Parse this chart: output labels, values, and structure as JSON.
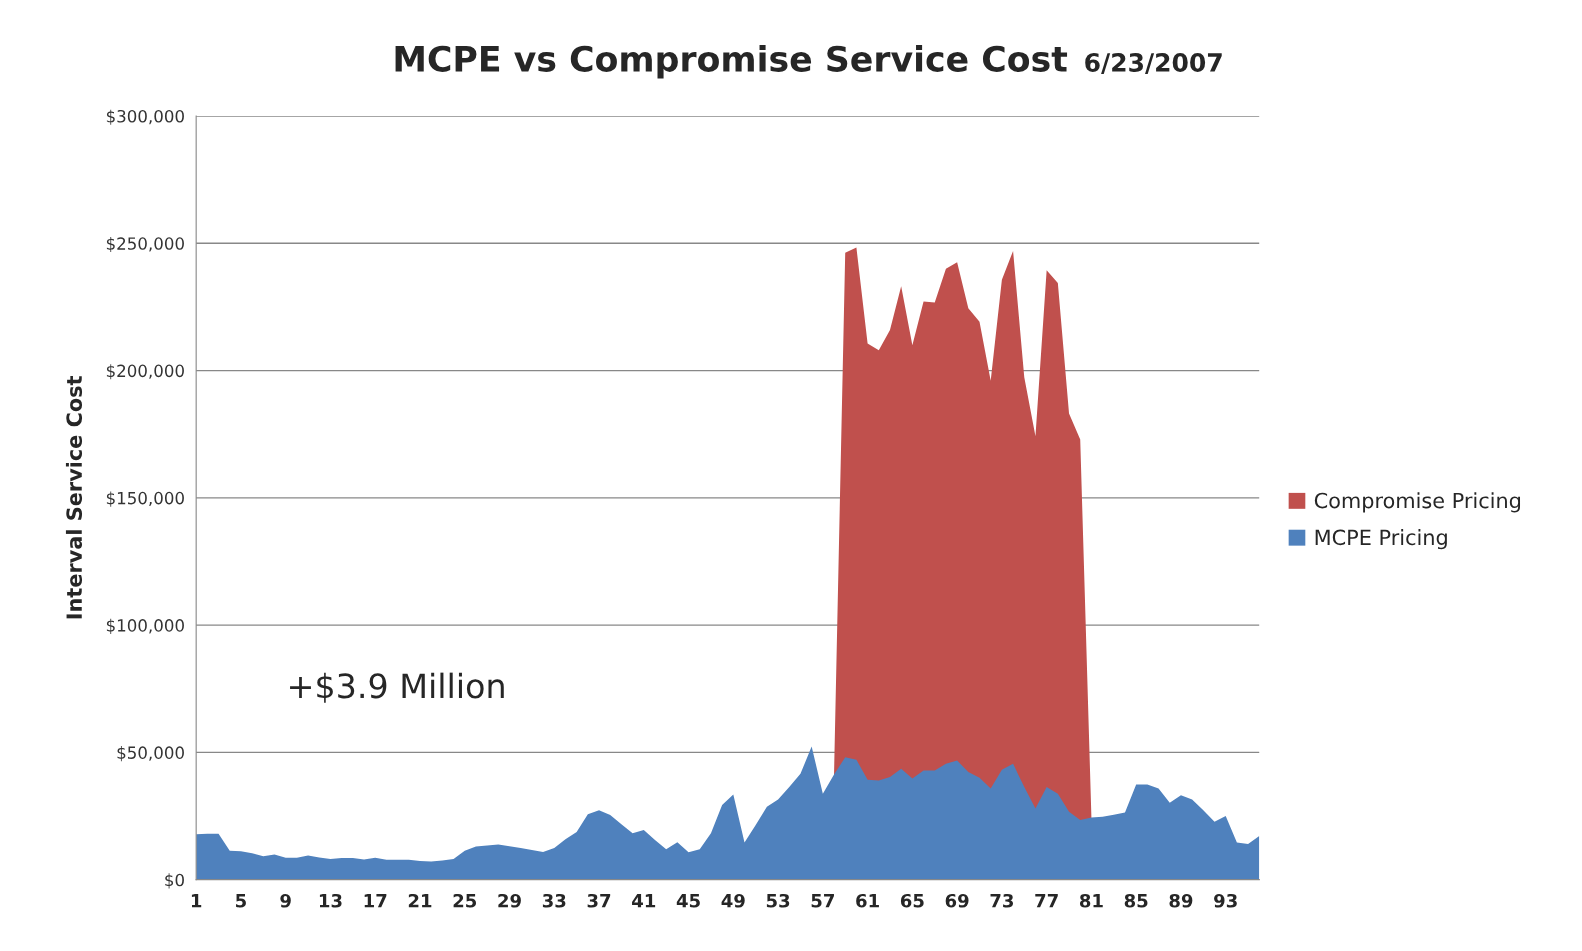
{
  "chart_data": {
    "type": "area",
    "title": "MCPE vs Compromise Service Cost",
    "subtitle": "6/23/2007",
    "ylabel": "Interval Service Cost",
    "categories": [
      "1",
      null,
      null,
      null,
      "5",
      null,
      null,
      null,
      "9",
      null,
      null,
      null,
      "13",
      null,
      null,
      null,
      "17",
      null,
      null,
      null,
      "21",
      null,
      null,
      null,
      "25",
      null,
      null,
      null,
      "29",
      null,
      null,
      null,
      "33",
      null,
      null,
      null,
      "37",
      null,
      null,
      null,
      "41",
      null,
      null,
      null,
      "45",
      null,
      null,
      null,
      "49",
      null,
      null,
      null,
      "53",
      null,
      null,
      null,
      "57",
      null,
      null,
      null,
      "61",
      null,
      null,
      null,
      "65",
      null,
      null,
      null,
      "69",
      null,
      null,
      null,
      "73",
      null,
      null,
      null,
      "77",
      null,
      null,
      null,
      "81",
      null,
      null,
      null,
      "85",
      null,
      null,
      null,
      "89",
      null,
      null,
      null,
      "93",
      null,
      null,
      null
    ],
    "series": [
      {
        "name": "Compromise Pricing",
        "color": "#c0504d",
        "values": [
          null,
          null,
          null,
          null,
          null,
          null,
          null,
          null,
          null,
          null,
          null,
          null,
          null,
          null,
          null,
          null,
          null,
          null,
          null,
          null,
          null,
          null,
          null,
          null,
          null,
          null,
          null,
          null,
          null,
          null,
          null,
          null,
          null,
          null,
          null,
          null,
          null,
          null,
          null,
          null,
          null,
          null,
          null,
          null,
          null,
          null,
          null,
          null,
          null,
          null,
          null,
          null,
          null,
          null,
          null,
          null,
          null,
          41300,
          246300,
          248300,
          210600,
          208000,
          215900,
          233100,
          209900,
          227100,
          226700,
          240000,
          242600,
          224500,
          219200,
          196000,
          235700,
          247000,
          197400,
          174200,
          239400,
          234400,
          183100,
          172900,
          24400,
          null,
          null,
          null,
          null,
          null,
          null,
          null,
          null,
          null,
          null,
          null,
          null,
          null,
          null,
          null
        ]
      },
      {
        "name": "MCPE Pricing",
        "color": "#4f81bd",
        "values": [
          17800,
          18000,
          18000,
          11400,
          11200,
          10400,
          9200,
          9900,
          8600,
          8600,
          9500,
          8700,
          8100,
          8500,
          8500,
          7900,
          8600,
          7800,
          7800,
          7800,
          7300,
          7100,
          7500,
          8100,
          11400,
          13000,
          13400,
          13800,
          13100,
          12400,
          11700,
          10900,
          12400,
          15900,
          18700,
          25700,
          27300,
          25400,
          21800,
          18200,
          19500,
          15600,
          12000,
          14700,
          10800,
          12000,
          18200,
          29300,
          33500,
          14600,
          21500,
          28600,
          31500,
          36400,
          41600,
          52300,
          33800,
          41300,
          48100,
          47100,
          39300,
          39000,
          40300,
          43600,
          39700,
          42900,
          42900,
          45500,
          46800,
          42300,
          40000,
          35800,
          43200,
          45500,
          36400,
          28000,
          36400,
          33800,
          26700,
          23400,
          24400,
          24700,
          25500,
          26400,
          37400,
          37400,
          35800,
          30200,
          33200,
          31500,
          27300,
          22800,
          25000,
          14600,
          14000,
          17200
        ]
      }
    ],
    "ylim": [
      0,
      300000
    ],
    "yticks": [
      {
        "value": 0,
        "label": "$0"
      },
      {
        "value": 50000,
        "label": "$50,000"
      },
      {
        "value": 100000,
        "label": "$100,000"
      },
      {
        "value": 150000,
        "label": "$150,000"
      },
      {
        "value": 200000,
        "label": "$200,000"
      },
      {
        "value": 250000,
        "label": "$250,000"
      },
      {
        "value": 300000,
        "label": "$300,000"
      }
    ],
    "grid": "y",
    "legend": "right",
    "annotations": [
      "+$3.9 Million"
    ]
  }
}
